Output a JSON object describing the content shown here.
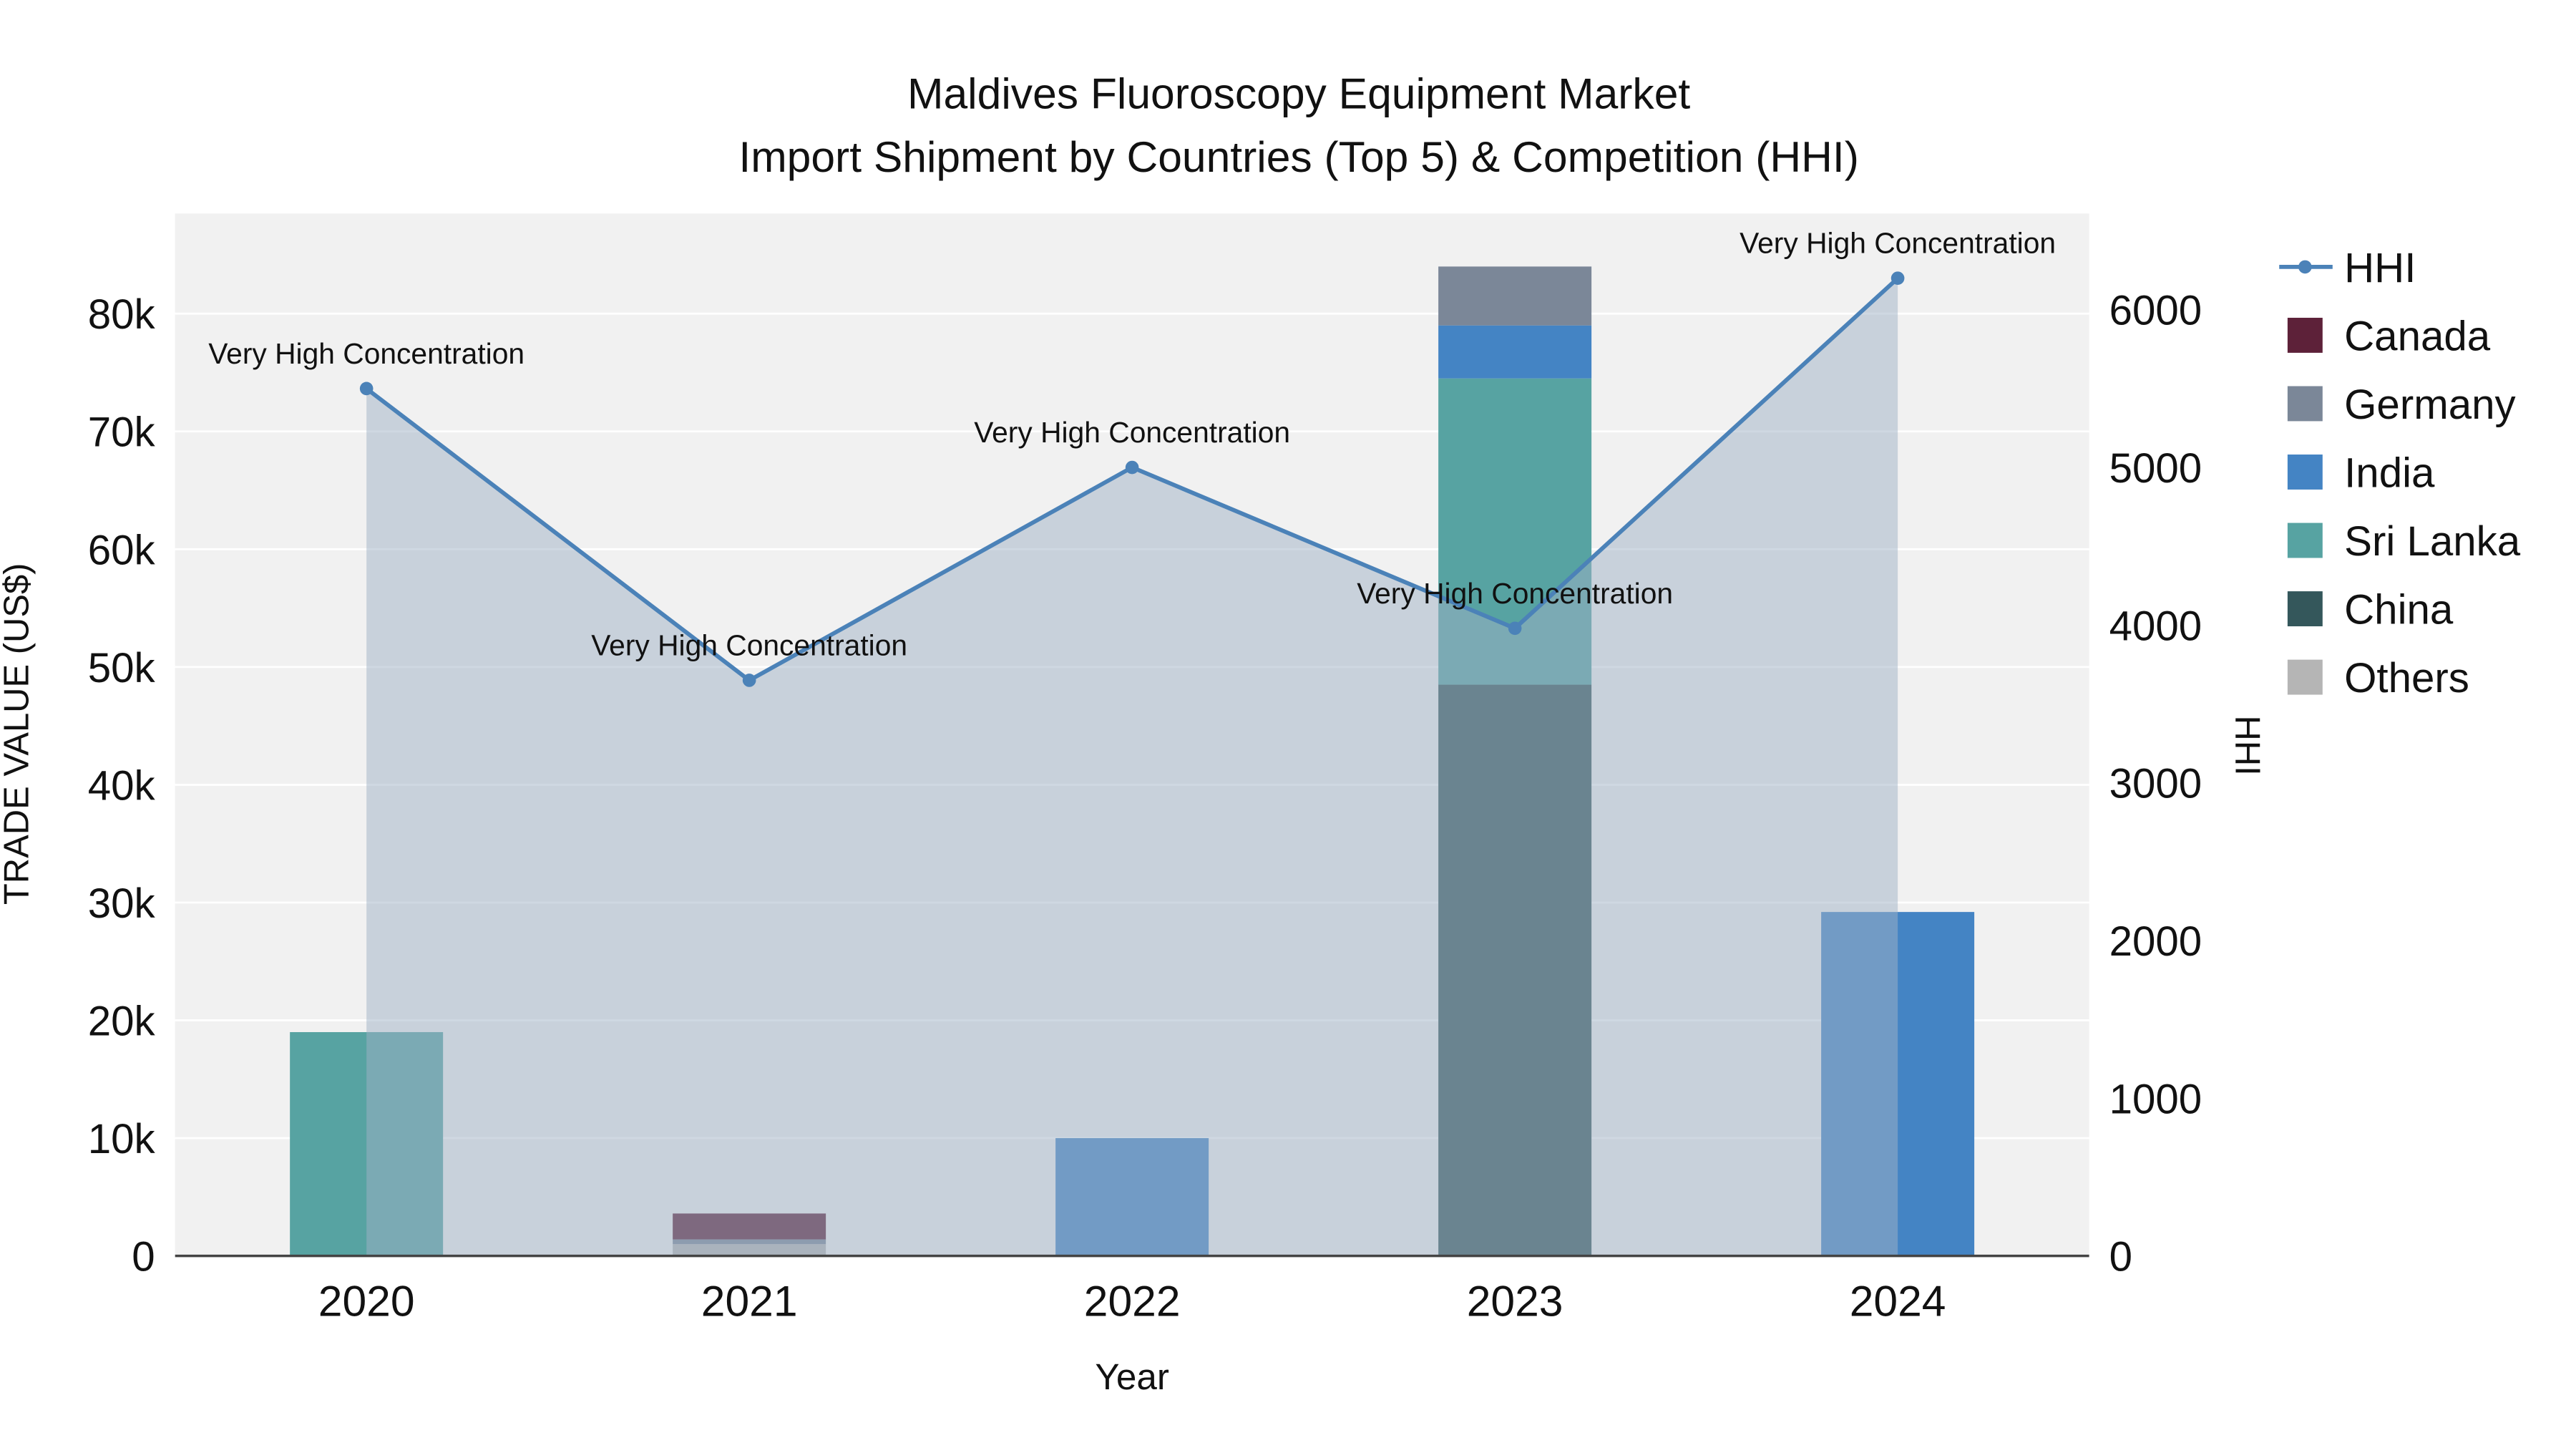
{
  "chart_data": {
    "type": "bar+line",
    "title_line1": "Maldives Fluoroscopy Equipment Market",
    "title_line2": "Import Shipment by Countries (Top 5) & Competition (HHI)",
    "xlabel": "Year",
    "x": [
      "2020",
      "2021",
      "2022",
      "2023",
      "2024"
    ],
    "left_axis": {
      "title": "TRADE VALUE (US$)",
      "range": [
        0,
        88500
      ],
      "ticks": [
        {
          "v": 0,
          "label": "0"
        },
        {
          "v": 10000,
          "label": "10k"
        },
        {
          "v": 20000,
          "label": "20k"
        },
        {
          "v": 30000,
          "label": "30k"
        },
        {
          "v": 40000,
          "label": "40k"
        },
        {
          "v": 50000,
          "label": "50k"
        },
        {
          "v": 60000,
          "label": "60k"
        },
        {
          "v": 70000,
          "label": "70k"
        },
        {
          "v": 80000,
          "label": "80k"
        }
      ]
    },
    "right_axis": {
      "title": "HHI",
      "range": [
        0,
        6610
      ],
      "ticks": [
        {
          "v": 0,
          "label": "0"
        },
        {
          "v": 1000,
          "label": "1000"
        },
        {
          "v": 2000,
          "label": "2000"
        },
        {
          "v": 3000,
          "label": "3000"
        },
        {
          "v": 4000,
          "label": "4000"
        },
        {
          "v": 5000,
          "label": "5000"
        },
        {
          "v": 6000,
          "label": "6000"
        }
      ]
    },
    "bar_series": [
      {
        "name": "Canada",
        "color": "#5d2139",
        "values": [
          0,
          2200,
          0,
          0,
          0
        ]
      },
      {
        "name": "Germany",
        "color": "#7b8798",
        "values": [
          0,
          400,
          0,
          5000,
          0
        ]
      },
      {
        "name": "India",
        "color": "#4484c4",
        "values": [
          0,
          0,
          10000,
          4500,
          29200
        ]
      },
      {
        "name": "Sri Lanka",
        "color": "#57a3a2",
        "values": [
          19000,
          0,
          0,
          26000,
          0
        ]
      },
      {
        "name": "China",
        "color": "#34575b",
        "values": [
          0,
          0,
          0,
          48500,
          0
        ]
      },
      {
        "name": "Others",
        "color": "#b5b5b5",
        "values": [
          0,
          1000,
          0,
          0,
          0
        ]
      }
    ],
    "stack_order": [
      "Others",
      "China",
      "Sri Lanka",
      "India",
      "Germany",
      "Canada"
    ],
    "hhi": {
      "name": "HHI",
      "color": "#4b82b8",
      "area_fill": "#9fb1c6",
      "area_opacity": 0.5,
      "values": [
        5500,
        3650,
        5000,
        3980,
        6200
      ]
    },
    "annotations": [
      {
        "year": "2020",
        "hhi": 5500,
        "text": "Very High Concentration"
      },
      {
        "year": "2021",
        "hhi": 3650,
        "text": "Very High Concentration"
      },
      {
        "year": "2022",
        "hhi": 5000,
        "text": "Very High Concentration"
      },
      {
        "year": "2023",
        "hhi": 3980,
        "text": "Very High Concentration"
      },
      {
        "year": "2024",
        "hhi": 6200,
        "text": "Very High Concentration"
      }
    ],
    "legend": [
      "HHI",
      "Canada",
      "Germany",
      "India",
      "Sri Lanka",
      "China",
      "Others"
    ],
    "style": {
      "plot_bg": "#f1f1f1",
      "grid": "#ffffff",
      "axis_line": "#444444",
      "text": "#111111"
    }
  }
}
